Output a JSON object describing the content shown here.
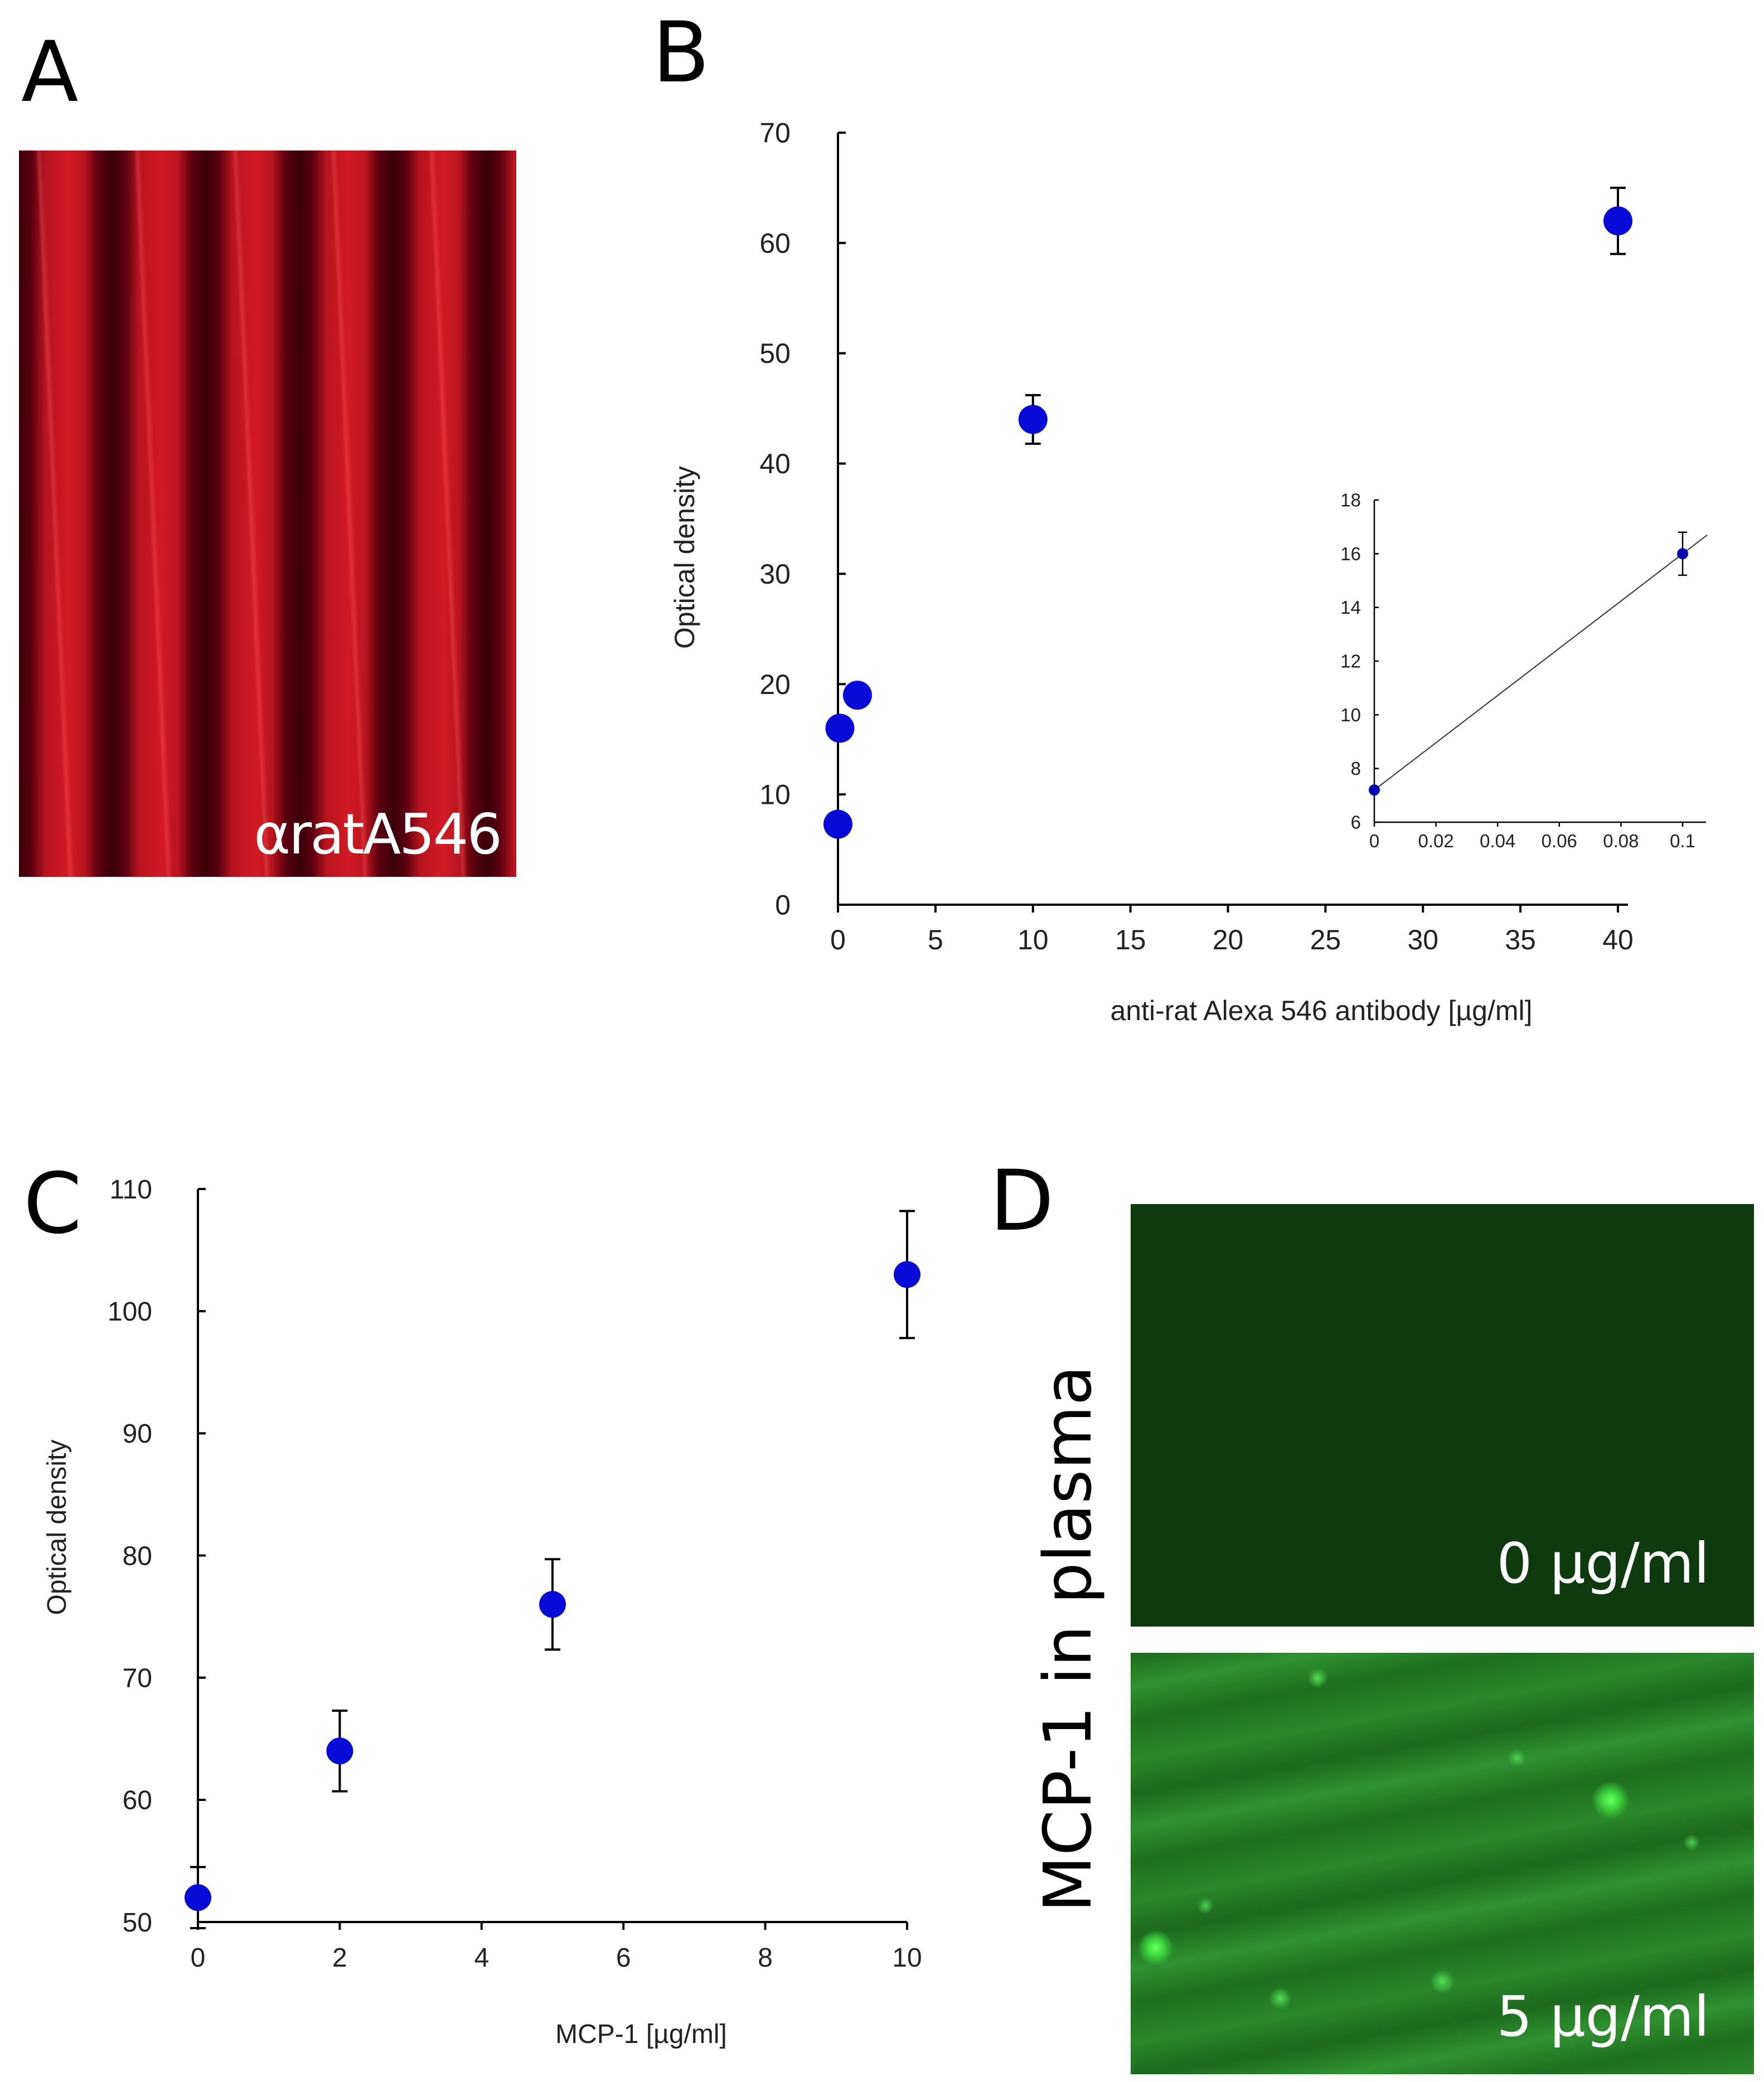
{
  "panels": {
    "a": {
      "letter": "A",
      "image_label": "αratA546"
    },
    "b": {
      "letter": "B"
    },
    "c": {
      "letter": "C"
    },
    "d": {
      "letter": "D",
      "side_label": "MCP-1 in plasma",
      "top_label": "0 µg/ml",
      "bottom_label": "5 µg/ml"
    }
  },
  "colors": {
    "marker": "#0a0ad8",
    "axis": "#000000",
    "inset_marker": "#0000b0"
  },
  "chart_data": [
    {
      "id": "panel-b-main",
      "type": "scatter",
      "xlabel": "anti-rat Alexa 546 antibody [µg/ml]",
      "ylabel": "Optical density",
      "xlim": [
        0,
        40
      ],
      "ylim": [
        0,
        70
      ],
      "xticks": [
        0,
        5,
        10,
        15,
        20,
        25,
        30,
        35,
        40
      ],
      "yticks": [
        0,
        10,
        20,
        30,
        40,
        50,
        60,
        70
      ],
      "points": [
        {
          "x": 0.0,
          "y": 7.3,
          "err": 0
        },
        {
          "x": 0.1,
          "y": 16,
          "err": 0
        },
        {
          "x": 1.0,
          "y": 19,
          "err": 0
        },
        {
          "x": 10,
          "y": 44,
          "err": 2.2
        },
        {
          "x": 40,
          "y": 62,
          "err": 3
        }
      ]
    },
    {
      "id": "panel-b-inset",
      "type": "line",
      "xlim": [
        0,
        0.1
      ],
      "ylim": [
        6,
        18
      ],
      "xticks": [
        0,
        0.02,
        0.04,
        0.06,
        0.08,
        0.1
      ],
      "yticks": [
        6,
        8,
        10,
        12,
        14,
        16,
        18
      ],
      "points": [
        {
          "x": 0,
          "y": 7.2,
          "err": 0
        },
        {
          "x": 0.1,
          "y": 16,
          "err": 0.8
        }
      ],
      "fit_line": {
        "x": [
          0,
          0.108
        ],
        "y": [
          7.2,
          16.7
        ]
      }
    },
    {
      "id": "panel-c",
      "type": "scatter",
      "xlabel": "MCP-1 [µg/ml]",
      "ylabel": "Optical density",
      "xlim": [
        0,
        10
      ],
      "ylim": [
        50,
        110
      ],
      "xticks": [
        0,
        2,
        4,
        6,
        8,
        10
      ],
      "yticks": [
        50,
        60,
        70,
        80,
        90,
        100,
        110
      ],
      "points": [
        {
          "x": 0,
          "y": 52,
          "err": 2.5
        },
        {
          "x": 2,
          "y": 64,
          "err": 3.3
        },
        {
          "x": 5,
          "y": 76,
          "err": 3.7
        },
        {
          "x": 10,
          "y": 103,
          "err": 5.2
        }
      ]
    }
  ]
}
